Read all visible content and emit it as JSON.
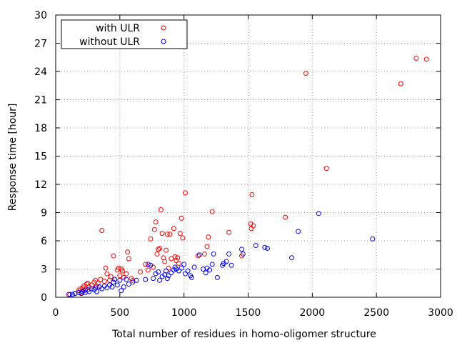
{
  "chart_data": {
    "type": "scatter",
    "xlabel": "Total number of residues in homo-oligomer structure",
    "ylabel": "Response time [hour]",
    "xlim": [
      0,
      3000
    ],
    "ylim": [
      0,
      30
    ],
    "x_ticks": [
      0,
      500,
      1000,
      1500,
      2000,
      2500,
      3000
    ],
    "y_ticks": [
      0,
      3,
      6,
      9,
      12,
      15,
      18,
      21,
      24,
      27,
      30
    ],
    "grid": true,
    "legend_position": "top-left",
    "series": [
      {
        "name": "with ULR",
        "color": "#ff0000",
        "points": [
          [
            100,
            0.3
          ],
          [
            150,
            0.4
          ],
          [
            180,
            0.7
          ],
          [
            190,
            0.9
          ],
          [
            200,
            0.5
          ],
          [
            210,
            1.0
          ],
          [
            220,
            1.2
          ],
          [
            230,
            0.8
          ],
          [
            240,
            1.4
          ],
          [
            250,
            1.5
          ],
          [
            260,
            1.1
          ],
          [
            280,
            1.3
          ],
          [
            300,
            1.6
          ],
          [
            310,
            1.8
          ],
          [
            320,
            1.2
          ],
          [
            330,
            1.5
          ],
          [
            350,
            1.9
          ],
          [
            360,
            7.1
          ],
          [
            380,
            1.7
          ],
          [
            390,
            3.1
          ],
          [
            400,
            2.5
          ],
          [
            420,
            1.8
          ],
          [
            430,
            2.2
          ],
          [
            450,
            4.4
          ],
          [
            460,
            1.9
          ],
          [
            480,
            2.9
          ],
          [
            490,
            3.1
          ],
          [
            500,
            2.3
          ],
          [
            510,
            3.0
          ],
          [
            520,
            2.8
          ],
          [
            530,
            2.1
          ],
          [
            550,
            2.5
          ],
          [
            560,
            4.8
          ],
          [
            570,
            4.1
          ],
          [
            590,
            2.0
          ],
          [
            600,
            1.8
          ],
          [
            660,
            2.7
          ],
          [
            700,
            3.5
          ],
          [
            720,
            2.9
          ],
          [
            740,
            6.2
          ],
          [
            760,
            3.2
          ],
          [
            770,
            7.2
          ],
          [
            780,
            8.0
          ],
          [
            790,
            4.6
          ],
          [
            800,
            5.1
          ],
          [
            810,
            5.2
          ],
          [
            820,
            9.3
          ],
          [
            830,
            6.8
          ],
          [
            840,
            4.2
          ],
          [
            850,
            3.8
          ],
          [
            860,
            5.0
          ],
          [
            870,
            6.7
          ],
          [
            880,
            3.1
          ],
          [
            890,
            6.7
          ],
          [
            900,
            4.1
          ],
          [
            920,
            7.3
          ],
          [
            930,
            4.3
          ],
          [
            940,
            3.9
          ],
          [
            950,
            4.2
          ],
          [
            960,
            3.6
          ],
          [
            970,
            6.8
          ],
          [
            980,
            8.4
          ],
          [
            990,
            6.3
          ],
          [
            1010,
            11.1
          ],
          [
            1110,
            4.4
          ],
          [
            1160,
            4.6
          ],
          [
            1180,
            5.4
          ],
          [
            1190,
            6.4
          ],
          [
            1220,
            9.1
          ],
          [
            1350,
            6.9
          ],
          [
            1450,
            4.4
          ],
          [
            1520,
            7.8
          ],
          [
            1525,
            7.3
          ],
          [
            1530,
            10.9
          ],
          [
            1540,
            7.6
          ],
          [
            1790,
            8.5
          ],
          [
            1950,
            23.8
          ],
          [
            2110,
            13.7
          ],
          [
            2690,
            22.7
          ],
          [
            2810,
            25.4
          ],
          [
            2890,
            25.3
          ]
        ]
      },
      {
        "name": "without ULR",
        "color": "#0000ff",
        "points": [
          [
            110,
            0.3
          ],
          [
            130,
            0.3
          ],
          [
            150,
            0.4
          ],
          [
            180,
            0.5
          ],
          [
            200,
            0.4
          ],
          [
            210,
            0.6
          ],
          [
            220,
            0.7
          ],
          [
            230,
            0.5
          ],
          [
            250,
            0.8
          ],
          [
            260,
            0.6
          ],
          [
            280,
            0.9
          ],
          [
            300,
            0.8
          ],
          [
            310,
            1.0
          ],
          [
            320,
            0.6
          ],
          [
            340,
            1.1
          ],
          [
            360,
            0.9
          ],
          [
            380,
            1.2
          ],
          [
            400,
            1.0
          ],
          [
            420,
            1.3
          ],
          [
            440,
            1.1
          ],
          [
            450,
            1.6
          ],
          [
            460,
            1.9
          ],
          [
            480,
            1.3
          ],
          [
            500,
            1.8
          ],
          [
            510,
            0.7
          ],
          [
            530,
            1.1
          ],
          [
            550,
            1.9
          ],
          [
            570,
            1.4
          ],
          [
            600,
            1.6
          ],
          [
            630,
            1.8
          ],
          [
            700,
            1.9
          ],
          [
            720,
            3.5
          ],
          [
            740,
            3.4
          ],
          [
            760,
            2.0
          ],
          [
            780,
            2.5
          ],
          [
            800,
            2.7
          ],
          [
            810,
            1.8
          ],
          [
            830,
            2.2
          ],
          [
            850,
            2.4
          ],
          [
            860,
            2.8
          ],
          [
            870,
            2.0
          ],
          [
            880,
            2.3
          ],
          [
            900,
            2.6
          ],
          [
            920,
            2.9
          ],
          [
            930,
            3.2
          ],
          [
            940,
            3.0
          ],
          [
            960,
            2.8
          ],
          [
            980,
            3.1
          ],
          [
            1000,
            3.5
          ],
          [
            1010,
            2.5
          ],
          [
            1030,
            2.8
          ],
          [
            1050,
            2.3
          ],
          [
            1060,
            2.1
          ],
          [
            1080,
            3.2
          ],
          [
            1120,
            4.5
          ],
          [
            1150,
            3.0
          ],
          [
            1170,
            2.6
          ],
          [
            1180,
            3.1
          ],
          [
            1200,
            2.9
          ],
          [
            1220,
            3.5
          ],
          [
            1230,
            4.6
          ],
          [
            1260,
            2.1
          ],
          [
            1300,
            3.4
          ],
          [
            1310,
            3.6
          ],
          [
            1330,
            3.8
          ],
          [
            1350,
            4.6
          ],
          [
            1370,
            3.4
          ],
          [
            1450,
            5.1
          ],
          [
            1460,
            4.6
          ],
          [
            1560,
            5.5
          ],
          [
            1630,
            5.3
          ],
          [
            1650,
            5.2
          ],
          [
            1840,
            4.2
          ],
          [
            1890,
            7.0
          ],
          [
            2050,
            8.9
          ],
          [
            2470,
            6.2
          ]
        ]
      }
    ]
  }
}
